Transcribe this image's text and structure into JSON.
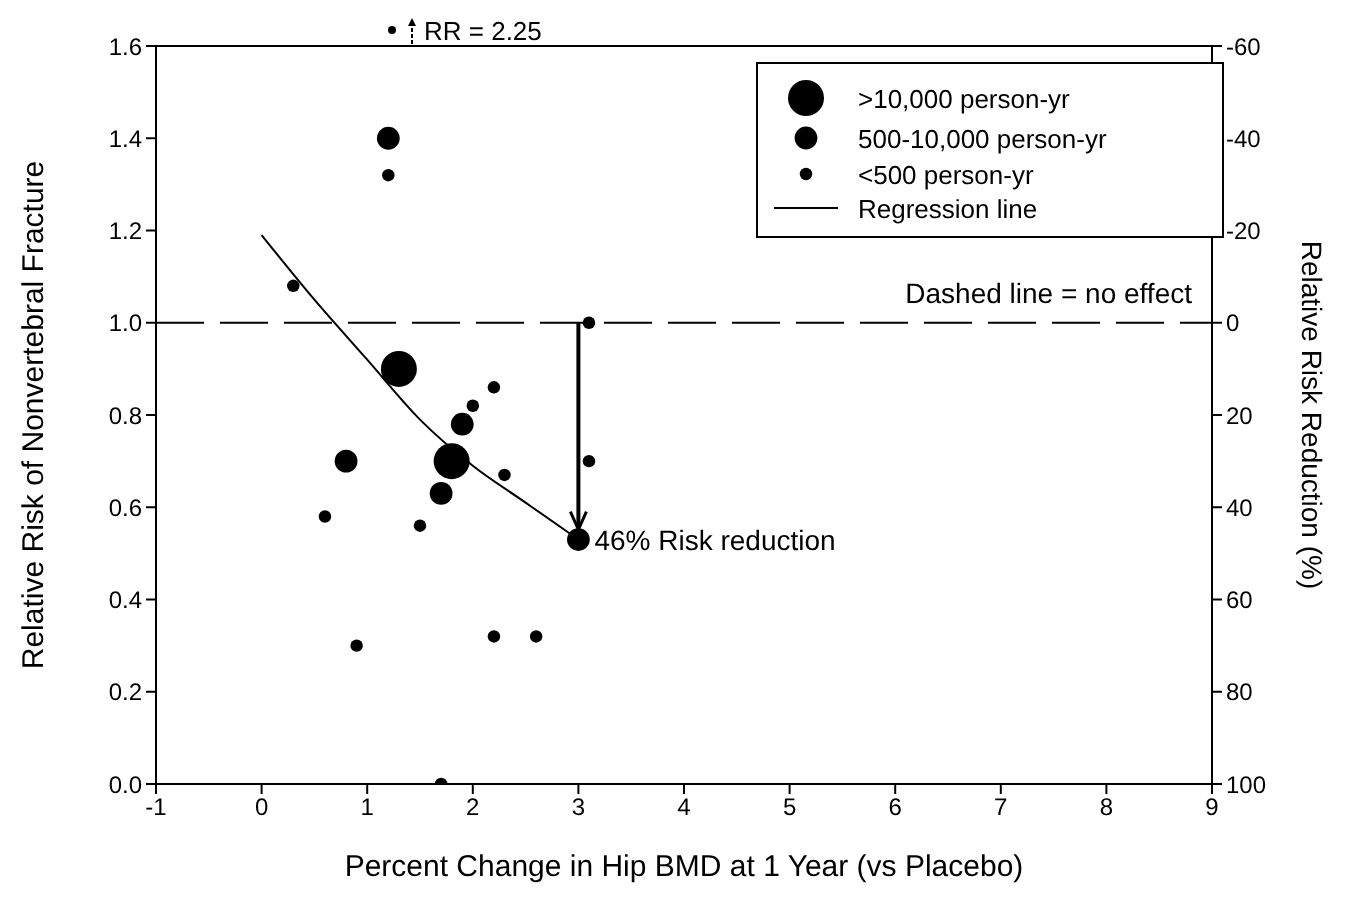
{
  "chart_data": {
    "type": "bubble",
    "xlabel": "Percent Change in Hip BMD at 1 Year (vs Placebo)",
    "ylabel": "Relative Risk of Nonvertebral Fracture",
    "y2label": "Relative Risk Reduction (%)",
    "xlim": [
      -1,
      9
    ],
    "xticks": [
      -1,
      0,
      1,
      2,
      3,
      4,
      5,
      6,
      7,
      8,
      9
    ],
    "ylim": [
      0,
      1.6
    ],
    "yticks": [
      {
        "value": 0,
        "label": "0.0"
      },
      {
        "value": 0.2,
        "label": "0.2"
      },
      {
        "value": 0.4,
        "label": "0.4"
      },
      {
        "value": 0.6,
        "label": "0.6"
      },
      {
        "value": 0.8,
        "label": "0.8"
      },
      {
        "value": 1,
        "label": "1.0"
      },
      {
        "value": 1.2,
        "label": "1.2"
      },
      {
        "value": 1.4,
        "label": "1.4"
      },
      {
        "value": 1.6,
        "label": "1.6"
      }
    ],
    "y2lim": [
      100,
      -60
    ],
    "y2ticks": [
      -60,
      -40,
      -20,
      0,
      20,
      40,
      60,
      80,
      100
    ],
    "series": [
      {
        "name": ">10,000 person-yr",
        "color": "#000000",
        "x": [
          1.3,
          1.8
        ],
        "values": [
          0.9,
          0.7
        ],
        "sizes": [
          1,
          1
        ]
      },
      {
        "name": "500-10,000 person-yr",
        "color": "#000000",
        "x": [
          1.2,
          0.8,
          1.7,
          1.9,
          3.0
        ],
        "values": [
          1.4,
          0.7,
          0.63,
          0.78,
          0.53
        ],
        "sizes": [
          0.4,
          0.4,
          0.4,
          0.4,
          0.4
        ]
      },
      {
        "name": "<500 person-yr",
        "color": "#000000",
        "x": [
          1.2,
          0.3,
          3.1,
          2.2,
          2.0,
          2.3,
          3.1,
          0.6,
          1.5,
          0.9,
          2.2,
          2.6,
          1.7
        ],
        "values": [
          1.32,
          1.08,
          1.0,
          0.86,
          0.82,
          0.67,
          0.7,
          0.58,
          0.56,
          0.3,
          0.32,
          0.32,
          0
        ],
        "sizes": [
          0.12,
          0.12,
          0.12,
          0.12,
          0.12,
          0.12,
          0.12,
          0.12,
          0.12,
          0.12,
          0.12,
          0.12,
          0.12
        ]
      },
      {
        "name": "Regression line",
        "type": "line",
        "color": "#000000",
        "marker": "none",
        "x": [
          0,
          0.5,
          1,
          1.5,
          2,
          2.5,
          3
        ],
        "values": [
          1.19,
          1.05,
          0.92,
          0.79,
          0.69,
          0.61,
          0.53
        ]
      }
    ],
    "ref_lines": [
      {
        "axis": "y",
        "value": 1,
        "label": "Dashed line = no effect",
        "line_style": "dashed",
        "color": "#000000"
      }
    ],
    "annotations": [
      "RR = 2.25",
      {
        "text": "46% Risk reduction",
        "x": 3,
        "y": 0.53
      }
    ],
    "legend": "top right",
    "grid": false
  }
}
